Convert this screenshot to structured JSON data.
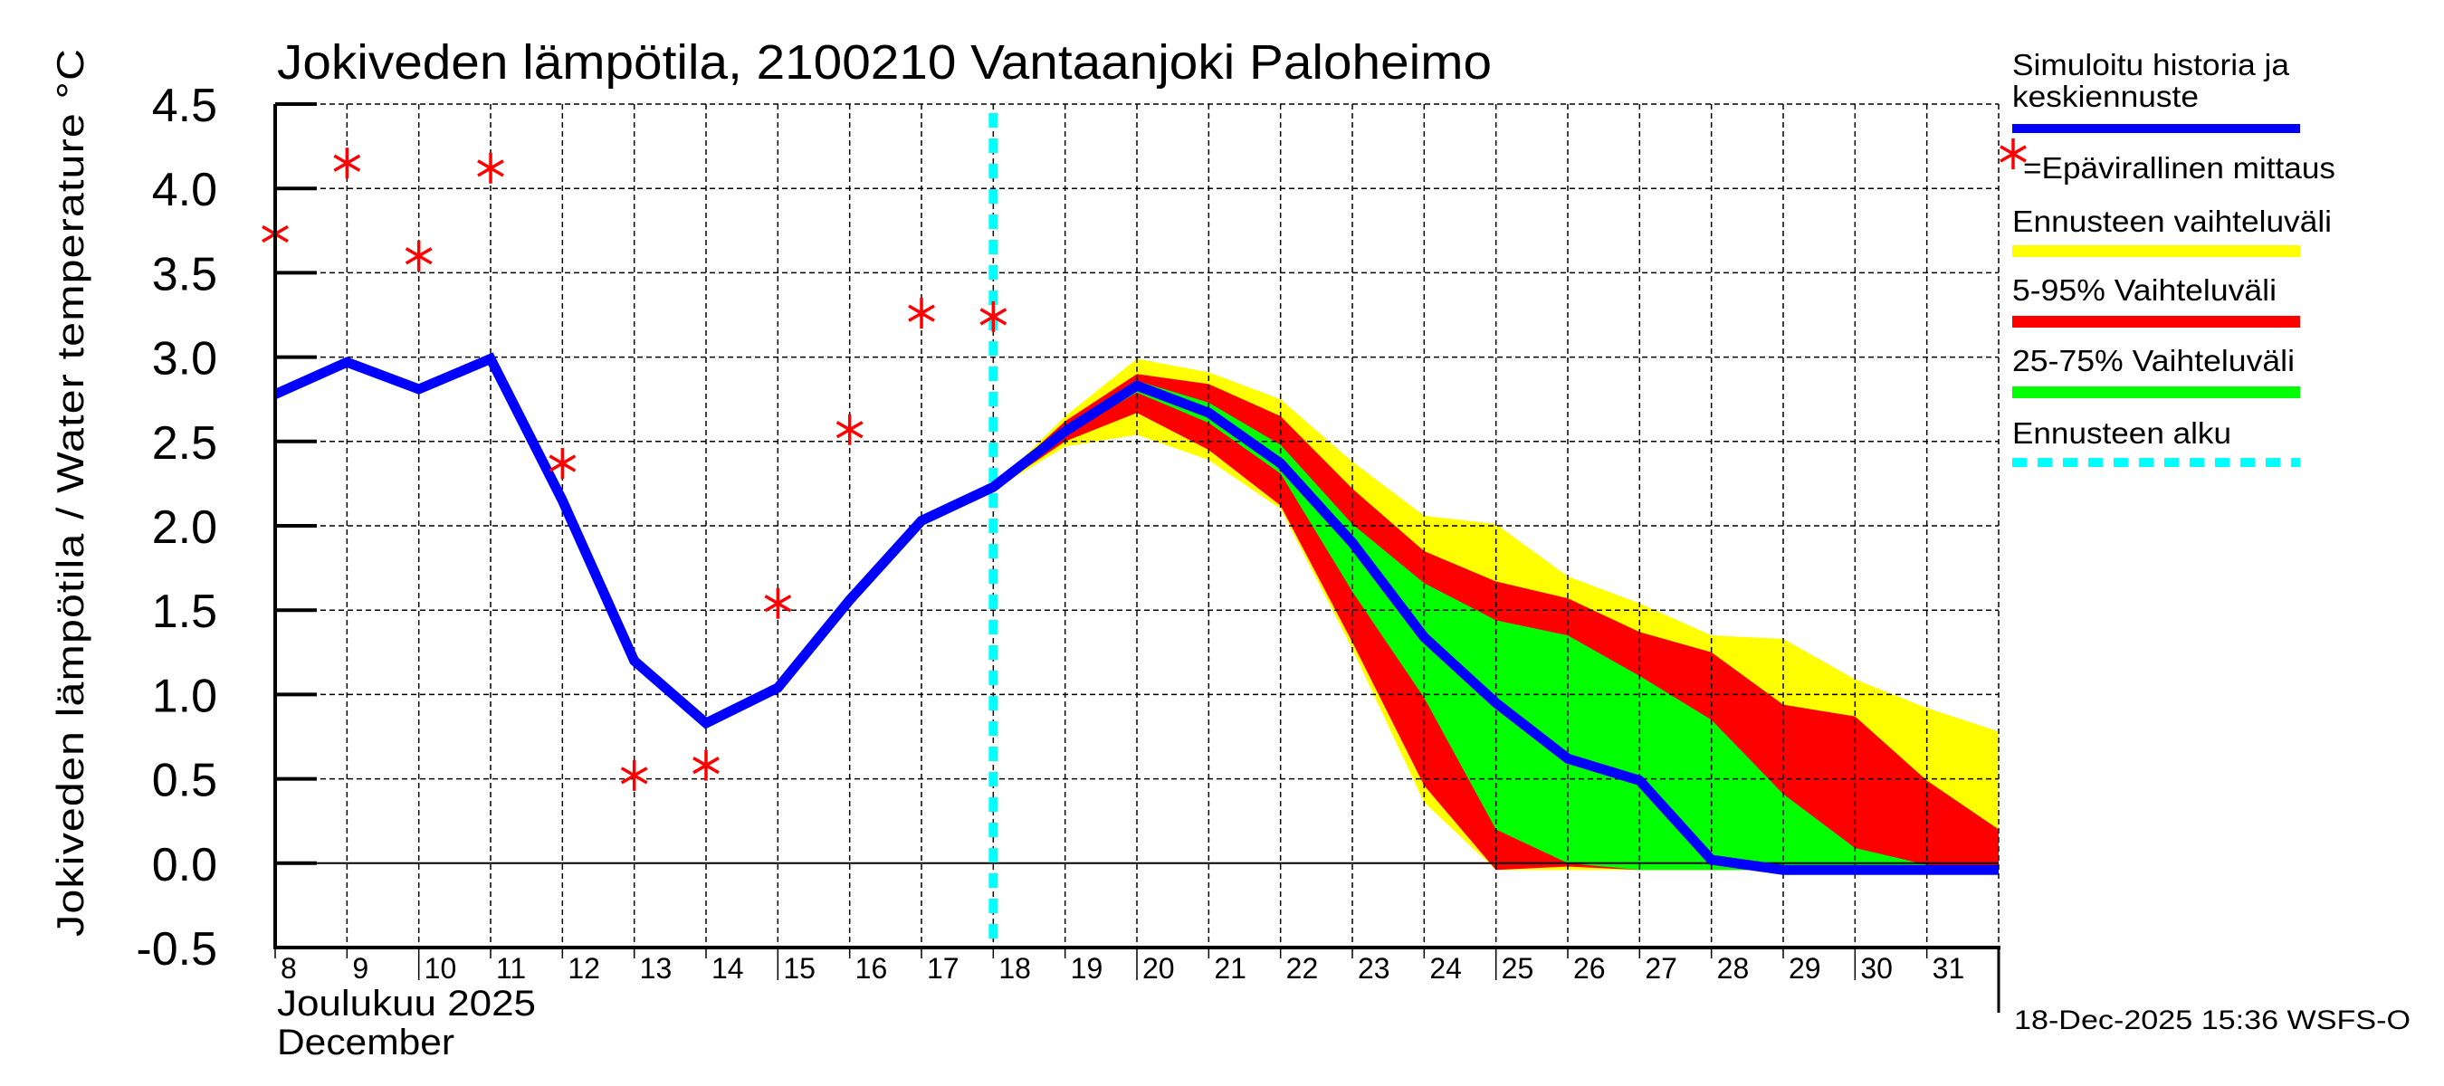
{
  "chart_data": {
    "type": "area",
    "title": "Jokiveden lämpötila, 2100210 Vantaanjoki Paloheimo",
    "ylabel": "Jokiveden lämpötila / Water temperature   °C",
    "xlabel_line1": "Joulukuu  2025",
    "xlabel_line2": "December",
    "ylim": [
      -0.5,
      4.5
    ],
    "xlim": [
      8,
      32
    ],
    "yticks": [
      -0.5,
      0.0,
      0.5,
      1.0,
      1.5,
      2.0,
      2.5,
      3.0,
      3.5,
      4.0,
      4.5
    ],
    "ytick_labels": [
      "-0.5",
      "0.0",
      "0.5",
      "1.0",
      "1.5",
      "2.0",
      "2.5",
      "3.0",
      "3.5",
      "4.0",
      "4.5"
    ],
    "xticks": [
      8,
      9,
      10,
      11,
      12,
      13,
      14,
      15,
      16,
      17,
      18,
      19,
      20,
      21,
      22,
      23,
      24,
      25,
      26,
      27,
      28,
      29,
      30,
      31
    ],
    "xtick_labels": [
      "8",
      "9",
      "10",
      "11",
      "12",
      "13",
      "14",
      "15",
      "16",
      "17",
      "18",
      "19",
      "20",
      "21",
      "22",
      "23",
      "24",
      "25",
      "26",
      "27",
      "28",
      "29",
      "30",
      "31"
    ],
    "grid": true,
    "forecast_start_day": 18,
    "series": [
      {
        "name": "Simuloitu historia ja keskiennuste",
        "kind": "line",
        "color": "#0000ff",
        "x": [
          8,
          9,
          10,
          11,
          12,
          13,
          14,
          15,
          16,
          17,
          18,
          19,
          20,
          21,
          22,
          23,
          24,
          25,
          26,
          27,
          28,
          29,
          30,
          31,
          32
        ],
        "values": [
          2.78,
          2.97,
          2.81,
          2.99,
          2.15,
          1.2,
          0.83,
          1.04,
          1.56,
          2.03,
          2.23,
          2.56,
          2.83,
          2.67,
          2.37,
          1.9,
          1.34,
          0.95,
          0.62,
          0.49,
          0.02,
          -0.04,
          -0.04,
          -0.04,
          -0.04
        ]
      },
      {
        "name": "Epävirallinen mittaus",
        "kind": "scatter",
        "marker": "asterisk",
        "color": "#ff0000",
        "x": [
          8,
          9,
          10,
          11,
          12,
          13,
          14,
          15,
          16,
          17,
          18
        ],
        "values": [
          3.73,
          4.15,
          3.6,
          4.12,
          2.37,
          0.52,
          0.58,
          1.54,
          2.57,
          3.26,
          3.24
        ]
      }
    ],
    "bands": [
      {
        "name": "Ennusteen vaihteluväli",
        "color": "#ffff00",
        "x": [
          18,
          19,
          20,
          21,
          22,
          23,
          24,
          25,
          26,
          27,
          28,
          29,
          30,
          31,
          32
        ],
        "upper": [
          2.23,
          2.65,
          2.99,
          2.91,
          2.75,
          2.38,
          2.06,
          2.01,
          1.7,
          1.54,
          1.35,
          1.33,
          1.09,
          0.92,
          0.78
        ],
        "lower": [
          2.21,
          2.47,
          2.54,
          2.39,
          2.1,
          1.27,
          0.36,
          -0.04,
          -0.04,
          -0.04,
          -0.04,
          -0.04,
          -0.04,
          -0.04,
          -0.04
        ]
      },
      {
        "name": "5-95% Vaihteluväli",
        "color": "#ff0000",
        "x": [
          18,
          19,
          20,
          21,
          22,
          23,
          24,
          25,
          26,
          27,
          28,
          29,
          30,
          31,
          32
        ],
        "upper": [
          2.23,
          2.62,
          2.9,
          2.84,
          2.65,
          2.22,
          1.85,
          1.67,
          1.57,
          1.37,
          1.25,
          0.94,
          0.87,
          0.49,
          0.2
        ],
        "lower": [
          2.21,
          2.5,
          2.67,
          2.45,
          2.12,
          1.31,
          0.46,
          -0.04,
          -0.02,
          -0.04,
          -0.04,
          -0.04,
          -0.04,
          -0.04,
          -0.04
        ]
      },
      {
        "name": "25-75% Vaihteluväli",
        "color": "#00ff00",
        "x": [
          18,
          19,
          20,
          21,
          22,
          23,
          24,
          25,
          26,
          27,
          28,
          29,
          30,
          31,
          32
        ],
        "upper": [
          2.23,
          2.58,
          2.86,
          2.73,
          2.48,
          2.01,
          1.66,
          1.44,
          1.35,
          1.11,
          0.85,
          0.41,
          0.09,
          -0.01,
          -0.04
        ],
        "lower": [
          2.22,
          2.54,
          2.79,
          2.61,
          2.31,
          1.61,
          0.98,
          0.2,
          0.0,
          -0.04,
          -0.04,
          -0.04,
          -0.04,
          -0.04,
          -0.04
        ]
      }
    ],
    "legend": {
      "placement": "right",
      "entries": [
        {
          "label_line1": "Simuloitu historia ja",
          "label_line2": "keskiennuste",
          "color": "#0000ff",
          "style": "solid"
        },
        {
          "label": "=Epävirallinen mittaus",
          "color": "#ff0000",
          "style": "asterisk"
        },
        {
          "label": "Ennusteen vaihteluväli",
          "color": "#ffff00",
          "style": "solid"
        },
        {
          "label": "5-95% Vaihteluväli",
          "color": "#ff0000",
          "style": "solid"
        },
        {
          "label": "25-75% Vaihteluväli",
          "color": "#00ff00",
          "style": "solid"
        },
        {
          "label": "Ennusteen alku",
          "color": "#00ffff",
          "style": "dashed"
        }
      ]
    }
  },
  "footer": {
    "timestamp": "18-Dec-2025 15:36 WSFS-O"
  }
}
